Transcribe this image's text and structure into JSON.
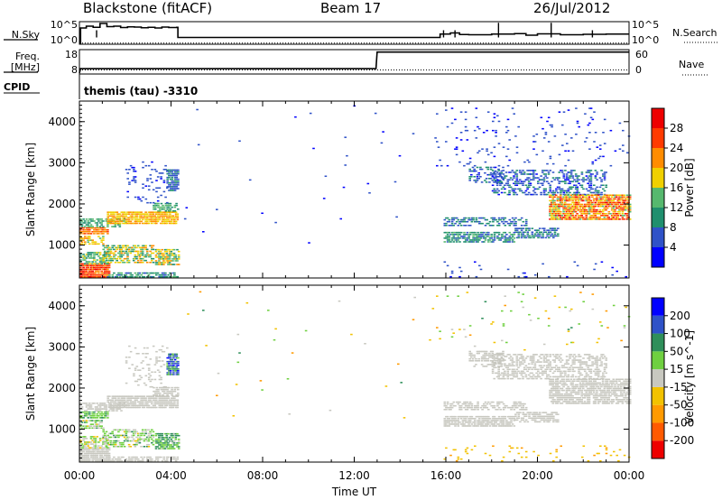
{
  "header": {
    "station": "Blackstone (fitACF)",
    "beam": "Beam 17",
    "date": "26/Jul/2012",
    "cpid_label": "CPID",
    "cpid_value": "themis (tau) -3310"
  },
  "colors": {
    "power": [
      "#0000ff",
      "#2f52c8",
      "#1f8f6e",
      "#56b86e",
      "#f0d000",
      "#ff8c00",
      "#ff3a00",
      "#ee0000"
    ],
    "velocity": [
      "#ee0000",
      "#ff5a00",
      "#ff9a00",
      "#f2c200",
      "#c8c8c0",
      "#6fd040",
      "#2f8f5a",
      "#2f52c8",
      "#0000ff"
    ]
  },
  "chart_data": [
    {
      "type": "line",
      "panel": "noise",
      "left_label": "N.Sky",
      "right_label": "N.Search",
      "left_ticks": [
        "10^5",
        "10^0"
      ],
      "right_ticks": [
        "10^5",
        "10^0"
      ],
      "series": [
        {
          "name": "N.Sky",
          "style": "solid",
          "x": [
            0,
            0.05,
            0.3,
            0.6,
            0.9,
            1.2,
            1.5,
            1.8,
            2.1,
            2.4,
            2.7,
            3.0,
            3.3,
            3.6,
            3.9,
            4.25,
            4.3,
            8,
            12,
            15.7,
            15.75,
            16.2,
            16.6,
            17,
            18,
            19,
            19.5,
            20,
            21,
            22,
            23,
            24
          ],
          "y": [
            0.05,
            0.72,
            0.8,
            0.75,
            0.92,
            0.78,
            0.8,
            0.74,
            0.77,
            0.76,
            0.73,
            0.75,
            0.72,
            0.76,
            0.74,
            0.75,
            0.3,
            0.3,
            0.3,
            0.3,
            0.45,
            0.5,
            0.43,
            0.42,
            0.45,
            0.47,
            0.4,
            0.46,
            0.42,
            0.44,
            0.45,
            0.45
          ]
        },
        {
          "name": "N.Search",
          "style": "dotted",
          "x": [
            0,
            24
          ],
          "y": [
            0.05,
            0.05
          ]
        }
      ]
    },
    {
      "type": "line",
      "panel": "frequency",
      "left_label": "Freq. [MHz]",
      "right_label": "Nave",
      "left_ticks": [
        "18",
        "8"
      ],
      "right_ticks": [
        "60",
        "0"
      ],
      "series": [
        {
          "name": "Freq. [MHz]",
          "style": "solid",
          "x": [
            0,
            0.05,
            12.95,
            13.0,
            24
          ],
          "y": [
            8.4,
            10.2,
            10.2,
            17.0,
            17.0
          ]
        },
        {
          "name": "Nave",
          "style": "dotted",
          "x": [
            0,
            24
          ],
          "y": [
            10,
            10
          ]
        }
      ]
    },
    {
      "type": "heatmap",
      "panel": "power",
      "ylabel": "Slant Range [km]",
      "yticks": [
        1000,
        2000,
        3000,
        4000
      ],
      "ylim": [
        200,
        4500
      ],
      "xlim": [
        0,
        24
      ],
      "colorbar_label": "Power [dB]",
      "colorbar_ticks": [
        4,
        8,
        12,
        16,
        20,
        24,
        28
      ],
      "colorbar_range": [
        0,
        32
      ],
      "regions": [
        {
          "t0": 0.0,
          "t1": 1.3,
          "r0": 200,
          "r1": 520,
          "v0": 22,
          "v1": 30,
          "density": 0.9
        },
        {
          "t0": 0.0,
          "t1": 1.2,
          "r0": 520,
          "r1": 800,
          "v0": 8,
          "v1": 18,
          "density": 0.5
        },
        {
          "t0": 0.0,
          "t1": 1.0,
          "r0": 1000,
          "r1": 1200,
          "v0": 14,
          "v1": 22,
          "density": 0.6
        },
        {
          "t0": 0.0,
          "t1": 1.2,
          "r0": 1250,
          "r1": 1420,
          "v0": 20,
          "v1": 26,
          "density": 0.8
        },
        {
          "t0": 0.0,
          "t1": 2.0,
          "r0": 1420,
          "r1": 1620,
          "v0": 8,
          "v1": 16,
          "density": 0.45
        },
        {
          "t0": 1.2,
          "t1": 4.3,
          "r0": 1500,
          "r1": 1800,
          "v0": 16,
          "v1": 24,
          "density": 0.8
        },
        {
          "t0": 1.2,
          "t1": 4.3,
          "r0": 200,
          "r1": 320,
          "v0": 6,
          "v1": 14,
          "density": 0.6
        },
        {
          "t0": 1.0,
          "t1": 3.2,
          "r0": 550,
          "r1": 1000,
          "v0": 8,
          "v1": 22,
          "density": 0.55
        },
        {
          "t0": 3.3,
          "t1": 4.3,
          "r0": 500,
          "r1": 900,
          "v0": 8,
          "v1": 22,
          "density": 0.75
        },
        {
          "t0": 3.2,
          "t1": 4.3,
          "r0": 1800,
          "r1": 2000,
          "v0": 8,
          "v1": 16,
          "density": 0.6
        },
        {
          "t0": 3.8,
          "t1": 4.3,
          "r0": 2300,
          "r1": 2800,
          "v0": 4,
          "v1": 10,
          "density": 0.7
        },
        {
          "t0": 2.0,
          "t1": 3.8,
          "r0": 2000,
          "r1": 3000,
          "v0": 3,
          "v1": 8,
          "density": 0.12
        },
        {
          "t0": 15.9,
          "t1": 19.0,
          "r0": 1050,
          "r1": 1300,
          "v0": 6,
          "v1": 14,
          "density": 0.65
        },
        {
          "t0": 19.0,
          "t1": 20.9,
          "r0": 1150,
          "r1": 1400,
          "v0": 4,
          "v1": 12,
          "density": 0.5
        },
        {
          "t0": 15.9,
          "t1": 19.5,
          "r0": 1450,
          "r1": 1650,
          "v0": 4,
          "v1": 12,
          "density": 0.45
        },
        {
          "t0": 17.0,
          "t1": 18.5,
          "r0": 2500,
          "r1": 2900,
          "v0": 3,
          "v1": 10,
          "density": 0.35
        },
        {
          "t0": 18.0,
          "t1": 23.0,
          "r0": 2200,
          "r1": 2800,
          "v0": 3,
          "v1": 10,
          "density": 0.35
        },
        {
          "t0": 20.5,
          "t1": 24.0,
          "r0": 1600,
          "r1": 2200,
          "v0": 14,
          "v1": 30,
          "density": 0.75
        },
        {
          "t0": 15.5,
          "t1": 24.0,
          "r0": 2900,
          "r1": 4300,
          "v0": 2,
          "v1": 8,
          "density": 0.03
        },
        {
          "t0": 4.5,
          "t1": 15.5,
          "r0": 800,
          "r1": 4400,
          "v0": 2,
          "v1": 8,
          "density": 0.002
        },
        {
          "t0": 15.9,
          "t1": 24.0,
          "r0": 200,
          "r1": 600,
          "v0": 2,
          "v1": 8,
          "density": 0.03
        }
      ]
    },
    {
      "type": "heatmap",
      "panel": "velocity",
      "xlabel": "Time UT",
      "xticks": [
        "00:00",
        "04:00",
        "08:00",
        "12:00",
        "16:00",
        "20:00",
        "00:00"
      ],
      "ylabel": "Slant Range [km]",
      "yticks": [
        1000,
        2000,
        3000,
        4000
      ],
      "ylim": [
        200,
        4500
      ],
      "xlim": [
        0,
        24
      ],
      "colorbar_label": "Velocity [m s^-1]",
      "colorbar_ticks": [
        -200,
        -100,
        -50,
        -15,
        15,
        50,
        100,
        200
      ],
      "colorbar_range": [
        -250,
        250
      ],
      "regions": [
        {
          "t0": 0.0,
          "t1": 1.3,
          "r0": 200,
          "r1": 520,
          "v0": -12,
          "v1": 12,
          "density": 0.85
        },
        {
          "t0": 0.0,
          "t1": 1.2,
          "r0": 520,
          "r1": 800,
          "v0": -30,
          "v1": 40,
          "density": 0.45
        },
        {
          "t0": 0.0,
          "t1": 1.0,
          "r0": 1000,
          "r1": 1200,
          "v0": -20,
          "v1": 60,
          "density": 0.55
        },
        {
          "t0": 0.0,
          "t1": 1.2,
          "r0": 1250,
          "r1": 1420,
          "v0": 10,
          "v1": 60,
          "density": 0.75
        },
        {
          "t0": 0.0,
          "t1": 2.0,
          "r0": 1420,
          "r1": 1620,
          "v0": -12,
          "v1": 12,
          "density": 0.4
        },
        {
          "t0": 1.2,
          "t1": 4.3,
          "r0": 1500,
          "r1": 1800,
          "v0": -12,
          "v1": 12,
          "density": 0.8
        },
        {
          "t0": 1.2,
          "t1": 4.3,
          "r0": 200,
          "r1": 320,
          "v0": -12,
          "v1": 12,
          "density": 0.6
        },
        {
          "t0": 1.0,
          "t1": 3.2,
          "r0": 550,
          "r1": 1000,
          "v0": -20,
          "v1": 60,
          "density": 0.5
        },
        {
          "t0": 3.3,
          "t1": 4.3,
          "r0": 500,
          "r1": 900,
          "v0": 10,
          "v1": 90,
          "density": 0.7
        },
        {
          "t0": 3.2,
          "t1": 4.3,
          "r0": 1800,
          "r1": 2000,
          "v0": -12,
          "v1": 12,
          "density": 0.6
        },
        {
          "t0": 3.8,
          "t1": 4.3,
          "r0": 2300,
          "r1": 2800,
          "v0": 20,
          "v1": 220,
          "density": 0.7
        },
        {
          "t0": 2.0,
          "t1": 3.8,
          "r0": 2000,
          "r1": 3000,
          "v0": -12,
          "v1": 12,
          "density": 0.12
        },
        {
          "t0": 15.9,
          "t1": 19.0,
          "r0": 1050,
          "r1": 1300,
          "v0": -14,
          "v1": 14,
          "density": 0.7
        },
        {
          "t0": 19.0,
          "t1": 20.9,
          "r0": 1150,
          "r1": 1400,
          "v0": -14,
          "v1": 14,
          "density": 0.55
        },
        {
          "t0": 15.9,
          "t1": 19.5,
          "r0": 1450,
          "r1": 1650,
          "v0": -14,
          "v1": 14,
          "density": 0.5
        },
        {
          "t0": 17.0,
          "t1": 18.5,
          "r0": 2500,
          "r1": 2900,
          "v0": -14,
          "v1": 14,
          "density": 0.45
        },
        {
          "t0": 18.0,
          "t1": 23.0,
          "r0": 2200,
          "r1": 2800,
          "v0": -14,
          "v1": 14,
          "density": 0.45
        },
        {
          "t0": 20.5,
          "t1": 24.0,
          "r0": 1600,
          "r1": 2200,
          "v0": -14,
          "v1": 14,
          "density": 0.7
        },
        {
          "t0": 15.5,
          "t1": 24.0,
          "r0": 2900,
          "r1": 4300,
          "v0": -60,
          "v1": 60,
          "density": 0.02
        },
        {
          "t0": 4.5,
          "t1": 15.5,
          "r0": 800,
          "r1": 4400,
          "v0": -60,
          "v1": 60,
          "density": 0.002
        },
        {
          "t0": 15.9,
          "t1": 24.0,
          "r0": 200,
          "r1": 600,
          "v0": -60,
          "v1": -15,
          "density": 0.04
        }
      ]
    }
  ]
}
